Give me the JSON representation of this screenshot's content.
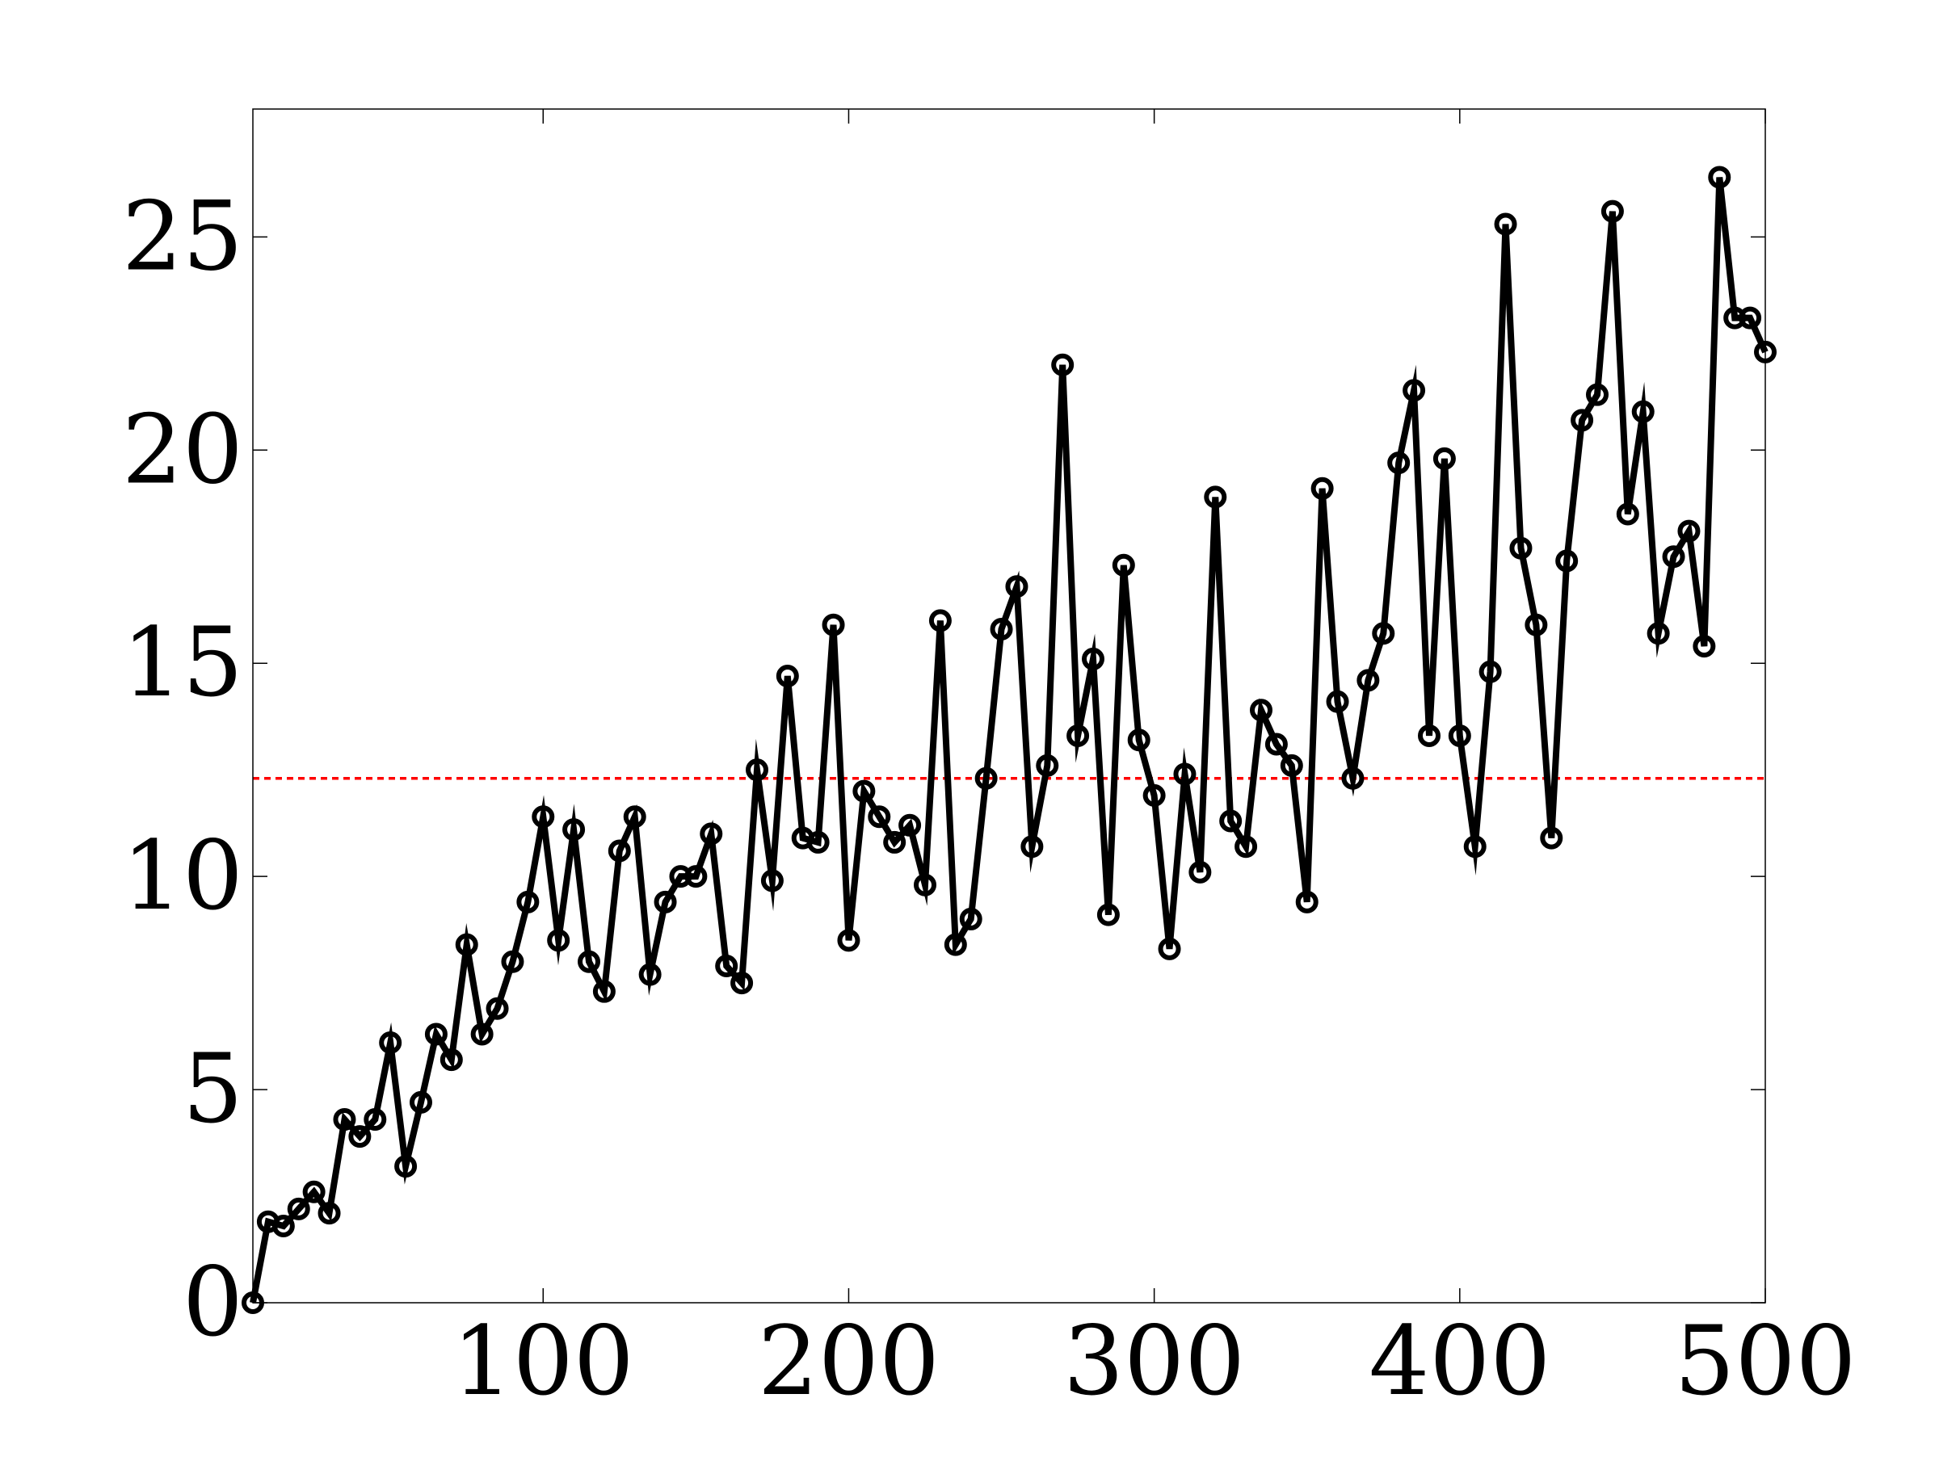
{
  "chart_data": {
    "type": "line",
    "title": "",
    "xlabel": "",
    "ylabel": "",
    "xlim": [
      5,
      500
    ],
    "ylim": [
      0,
      28
    ],
    "grid": false,
    "x_ticks": [
      100,
      200,
      300,
      400,
      500
    ],
    "y_ticks": [
      0,
      5,
      10,
      15,
      20,
      25
    ],
    "x_tick_labels": [
      "100",
      "200",
      "300",
      "400",
      "500"
    ],
    "y_tick_labels": [
      "0",
      "5",
      "10",
      "15",
      "20",
      "25"
    ],
    "series": [
      {
        "marker": "circle",
        "color": "#000000",
        "x": [
          5,
          10,
          15,
          20,
          25,
          30,
          35,
          40,
          45,
          50,
          55,
          60,
          65,
          70,
          75,
          80,
          85,
          90,
          95,
          100,
          105,
          110,
          115,
          120,
          125,
          130,
          135,
          140,
          145,
          150,
          155,
          160,
          165,
          170,
          175,
          180,
          185,
          190,
          195,
          200,
          205,
          210,
          215,
          220,
          225,
          230,
          235,
          240,
          245,
          250,
          255,
          260,
          265,
          270,
          275,
          280,
          285,
          290,
          295,
          300,
          305,
          310,
          315,
          320,
          325,
          330,
          335,
          340,
          345,
          350,
          355,
          360,
          365,
          370,
          375,
          380,
          385,
          390,
          395,
          400,
          405,
          410,
          415,
          420,
          425,
          430,
          435,
          440,
          445,
          450,
          455,
          460,
          465,
          470,
          475,
          480,
          485,
          490,
          495,
          500
        ],
        "y": [
          0.0,
          1.9,
          1.8,
          2.2,
          2.6,
          2.1,
          4.3,
          3.9,
          4.3,
          6.1,
          3.2,
          4.7,
          6.3,
          5.7,
          8.4,
          6.3,
          6.9,
          8.0,
          9.4,
          11.4,
          8.5,
          11.1,
          8.0,
          7.3,
          10.6,
          11.4,
          7.7,
          9.4,
          10.0,
          10.0,
          11.0,
          7.9,
          7.5,
          12.5,
          9.9,
          14.7,
          10.9,
          10.8,
          15.9,
          8.5,
          12.0,
          11.4,
          10.8,
          11.2,
          9.8,
          16.0,
          8.4,
          9.0,
          12.3,
          15.8,
          16.8,
          10.7,
          12.6,
          22.0,
          13.3,
          15.1,
          9.1,
          17.3,
          13.2,
          11.9,
          8.3,
          12.4,
          10.1,
          18.9,
          11.3,
          10.7,
          13.9,
          13.1,
          12.6,
          9.4,
          19.1,
          14.1,
          12.3,
          14.6,
          15.7,
          19.7,
          21.4,
          13.3,
          19.8,
          13.3,
          10.7,
          14.8,
          25.3,
          17.7,
          15.9,
          10.9,
          17.4,
          20.7,
          21.3,
          25.6,
          18.5,
          20.9,
          15.7,
          17.5,
          18.1,
          15.4,
          26.4,
          23.1,
          23.1,
          22.3
        ]
      }
    ],
    "reference_line": {
      "y": 12.3,
      "color": "#ff0000",
      "style": "dashed"
    }
  }
}
